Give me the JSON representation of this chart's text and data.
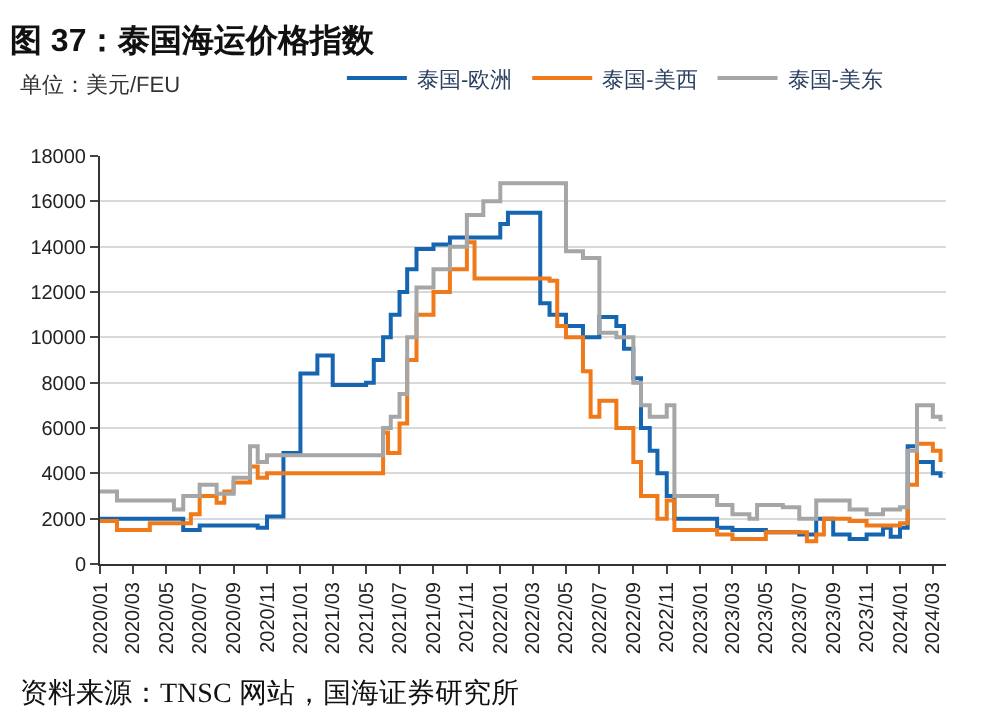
{
  "chart_data": {
    "type": "step",
    "title": "图 37：泰国海运价格指数",
    "ylabel": "单位：美元/FEU",
    "annotations": [
      "资料来源：TNSC 网站，国海证券研究所"
    ],
    "series": [
      {
        "name": "泰国-欧洲",
        "color": "#1565b0",
        "x": [
          "2020-01-01",
          "2020-06-01",
          "2020-07-01",
          "2020-10-01",
          "2020-10-15",
          "2020-11-01",
          "2020-12-01",
          "2021-01-01",
          "2021-02-01",
          "2021-03-01",
          "2021-05-01",
          "2021-05-15",
          "2021-06-01",
          "2021-06-15",
          "2021-07-01",
          "2021-07-15",
          "2021-08-01",
          "2021-09-01",
          "2021-10-01",
          "2021-12-01",
          "2022-01-01",
          "2022-01-15",
          "2022-03-01",
          "2022-03-15",
          "2022-04-01",
          "2022-05-01",
          "2022-06-01",
          "2022-07-01",
          "2022-08-01",
          "2022-08-15",
          "2022-09-01",
          "2022-09-15",
          "2022-10-01",
          "2022-10-15",
          "2022-11-01",
          "2022-11-15",
          "2022-12-01",
          "2023-01-01",
          "2023-02-01",
          "2023-03-01",
          "2023-05-01",
          "2023-07-01",
          "2023-08-01",
          "2023-09-01",
          "2023-10-01",
          "2023-11-01",
          "2023-12-01",
          "2023-12-15",
          "2024-01-01",
          "2024-01-15",
          "2024-02-01",
          "2024-03-01",
          "2024-03-15"
        ],
        "values": [
          2000,
          1500,
          1700,
          1700,
          1600,
          2100,
          4900,
          8400,
          9200,
          7900,
          8000,
          9000,
          10000,
          11000,
          12000,
          13000,
          13900,
          14100,
          14400,
          14400,
          15000,
          15500,
          15500,
          11500,
          11000,
          10500,
          10000,
          10900,
          10500,
          9500,
          8200,
          6000,
          5000,
          4000,
          3000,
          2000,
          2000,
          2000,
          1600,
          1500,
          1400,
          1300,
          2000,
          1300,
          1100,
          1300,
          1600,
          1200,
          1600,
          5200,
          4500,
          4000,
          3800
        ]
      },
      {
        "name": "泰国-美西",
        "color": "#f07a1a",
        "x": [
          "2020-01-01",
          "2020-02-01",
          "2020-04-01",
          "2020-06-01",
          "2020-06-15",
          "2020-07-01",
          "2020-08-01",
          "2020-08-15",
          "2020-09-01",
          "2020-10-01",
          "2020-10-15",
          "2020-11-01",
          "2021-05-15",
          "2021-06-01",
          "2021-06-10",
          "2021-07-01",
          "2021-07-15",
          "2021-08-01",
          "2021-09-01",
          "2021-10-01",
          "2021-11-01",
          "2021-11-15",
          "2022-04-01",
          "2022-04-15",
          "2022-05-01",
          "2022-06-01",
          "2022-06-15",
          "2022-07-01",
          "2022-08-01",
          "2022-09-01",
          "2022-09-15",
          "2022-10-01",
          "2022-10-15",
          "2022-11-01",
          "2022-11-15",
          "2023-02-01",
          "2023-03-01",
          "2023-04-01",
          "2023-05-01",
          "2023-07-01",
          "2023-07-15",
          "2023-08-01",
          "2023-08-15",
          "2023-10-01",
          "2023-11-01",
          "2023-12-01",
          "2024-01-01",
          "2024-01-15",
          "2024-02-01",
          "2024-03-01",
          "2024-03-15"
        ],
        "values": [
          1900,
          1500,
          1800,
          1800,
          2200,
          3000,
          2700,
          3200,
          3600,
          4300,
          3800,
          4000,
          4000,
          5800,
          4900,
          6200,
          9000,
          11000,
          12000,
          13000,
          14200,
          12600,
          12500,
          10500,
          10000,
          8500,
          6500,
          7200,
          6000,
          4500,
          3000,
          3000,
          2000,
          2800,
          1500,
          1300,
          1100,
          1100,
          1400,
          1400,
          1000,
          1300,
          2000,
          1900,
          1700,
          1700,
          1800,
          3500,
          5300,
          5000,
          4500
        ]
      },
      {
        "name": "泰国-美东",
        "color": "#a6a6a6",
        "x": [
          "2020-01-01",
          "2020-02-01",
          "2020-05-01",
          "2020-05-15",
          "2020-06-01",
          "2020-07-01",
          "2020-08-01",
          "2020-09-01",
          "2020-10-01",
          "2020-10-15",
          "2020-11-01",
          "2021-05-15",
          "2021-06-01",
          "2021-06-15",
          "2021-07-01",
          "2021-07-15",
          "2021-08-01",
          "2021-09-01",
          "2021-10-01",
          "2021-11-01",
          "2021-12-01",
          "2022-01-01",
          "2022-04-15",
          "2022-05-01",
          "2022-06-01",
          "2022-07-01",
          "2022-08-01",
          "2022-09-01",
          "2022-09-15",
          "2022-10-01",
          "2022-11-01",
          "2022-11-15",
          "2022-12-01",
          "2023-02-01",
          "2023-03-01",
          "2023-04-01",
          "2023-04-15",
          "2023-06-01",
          "2023-07-01",
          "2023-08-01",
          "2023-09-01",
          "2023-10-01",
          "2023-11-01",
          "2023-12-01",
          "2024-01-01",
          "2024-01-15",
          "2024-02-01",
          "2024-03-01",
          "2024-03-15"
        ],
        "values": [
          3200,
          2800,
          2800,
          2400,
          3000,
          3500,
          3100,
          3800,
          5200,
          4500,
          4800,
          4800,
          6000,
          6500,
          7500,
          10000,
          12200,
          13000,
          14000,
          15400,
          16000,
          16800,
          16800,
          13800,
          13500,
          10200,
          10000,
          8000,
          7000,
          6500,
          7000,
          3000,
          3000,
          2600,
          2200,
          2000,
          2600,
          2500,
          2000,
          2800,
          2800,
          2400,
          2200,
          2400,
          2500,
          5000,
          7000,
          6500,
          6300
        ]
      }
    ],
    "xlim": [
      "2020-01-01",
      "2024-03-25"
    ],
    "xticks": [
      {
        "value": "2020-01-01",
        "label": "2020/01"
      },
      {
        "value": "2020-03-01",
        "label": "2020/03"
      },
      {
        "value": "2020-05-01",
        "label": "2020/05"
      },
      {
        "value": "2020-07-01",
        "label": "2020/07"
      },
      {
        "value": "2020-09-01",
        "label": "2020/09"
      },
      {
        "value": "2020-11-01",
        "label": "2020/11"
      },
      {
        "value": "2021-01-01",
        "label": "2021/01"
      },
      {
        "value": "2021-03-01",
        "label": "2021/03"
      },
      {
        "value": "2021-05-01",
        "label": "2021/05"
      },
      {
        "value": "2021-07-01",
        "label": "2021/07"
      },
      {
        "value": "2021-09-01",
        "label": "2021/09"
      },
      {
        "value": "2021-11-01",
        "label": "2021/11"
      },
      {
        "value": "2022-01-01",
        "label": "2022/01"
      },
      {
        "value": "2022-03-01",
        "label": "2022/03"
      },
      {
        "value": "2022-05-01",
        "label": "2022/05"
      },
      {
        "value": "2022-07-01",
        "label": "2022/07"
      },
      {
        "value": "2022-09-01",
        "label": "2022/09"
      },
      {
        "value": "2022-11-01",
        "label": "2022/11"
      },
      {
        "value": "2023-01-01",
        "label": "2023/01"
      },
      {
        "value": "2023-03-01",
        "label": "2023/03"
      },
      {
        "value": "2023-05-01",
        "label": "2023/05"
      },
      {
        "value": "2023-07-01",
        "label": "2023/07"
      },
      {
        "value": "2023-09-01",
        "label": "2023/09"
      },
      {
        "value": "2023-11-01",
        "label": "2023/11"
      },
      {
        "value": "2024-01-01",
        "label": "2024/01"
      },
      {
        "value": "2024-03-01",
        "label": "2024/03"
      }
    ],
    "ylim": [
      0,
      18000
    ],
    "yticks": [
      0,
      2000,
      4000,
      6000,
      8000,
      10000,
      12000,
      14000,
      16000,
      18000
    ],
    "grid": "y",
    "legend": "top",
    "line_style": "solid"
  }
}
